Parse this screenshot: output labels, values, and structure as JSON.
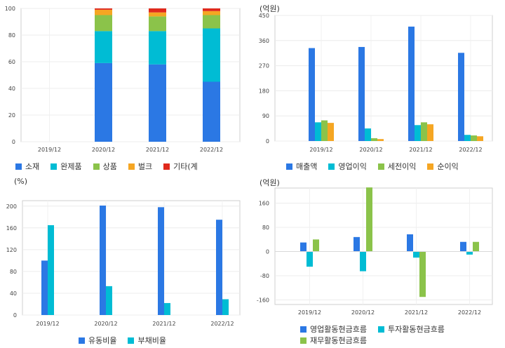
{
  "chart_data": [
    {
      "id": "c1",
      "type": "bar",
      "stacked": true,
      "unit_label": "",
      "categories": [
        "2019/12",
        "2020/12",
        "2021/12",
        "2022/12"
      ],
      "ylim": [
        0,
        100
      ],
      "yticks": [
        0,
        20,
        40,
        60,
        80,
        100
      ],
      "series": [
        {
          "name": "소재",
          "color": "#2b78e4",
          "values": [
            null,
            59,
            58,
            45
          ]
        },
        {
          "name": "완제품",
          "color": "#00bcd4",
          "values": [
            null,
            24,
            25,
            40
          ]
        },
        {
          "name": "상품",
          "color": "#8bc34a",
          "values": [
            null,
            12,
            11,
            10
          ]
        },
        {
          "name": "벌크",
          "color": "#f5a623",
          "values": [
            null,
            4,
            3,
            3
          ]
        },
        {
          "name": "기타(계",
          "color": "#e0291c",
          "values": [
            null,
            1,
            3,
            2
          ]
        }
      ],
      "legend_position": "bottom"
    },
    {
      "id": "c2",
      "type": "bar",
      "unit_label": "(억원)",
      "categories": [
        "2019/12",
        "2020/12",
        "2021/12",
        "2022/12"
      ],
      "ylim": [
        0,
        450
      ],
      "yticks": [
        0,
        90,
        180,
        270,
        360,
        450
      ],
      "series": [
        {
          "name": "매출액",
          "color": "#2b78e4",
          "values": [
            333,
            337,
            410,
            316
          ]
        },
        {
          "name": "영업이익",
          "color": "#00bcd4",
          "values": [
            67,
            45,
            57,
            22
          ]
        },
        {
          "name": "세전이익",
          "color": "#8bc34a",
          "values": [
            74,
            10,
            67,
            20
          ]
        },
        {
          "name": "순이익",
          "color": "#f5a623",
          "values": [
            65,
            7,
            60,
            17
          ]
        }
      ],
      "legend_position": "bottom"
    },
    {
      "id": "c3",
      "type": "bar",
      "unit_label": "(%)",
      "categories": [
        "2019/12",
        "2020/12",
        "2021/12",
        "2022/12"
      ],
      "ylim": [
        0,
        210
      ],
      "yticks": [
        0,
        40,
        80,
        120,
        160,
        200
      ],
      "series": [
        {
          "name": "유동비율",
          "color": "#2b78e4",
          "values": [
            100,
            201,
            198,
            175
          ]
        },
        {
          "name": "부채비율",
          "color": "#00bcd4",
          "values": [
            165,
            53,
            22,
            29
          ]
        }
      ],
      "legend_position": "bottom"
    },
    {
      "id": "c4",
      "type": "bar",
      "unit_label": "(억원)",
      "categories": [
        "2019/12",
        "2020/12",
        "2021/12",
        "2022/12"
      ],
      "ylim": [
        -175,
        210
      ],
      "yticks": [
        -160,
        -80,
        0,
        80,
        160
      ],
      "series": [
        {
          "name": "영업활동현금흐름",
          "color": "#2b78e4",
          "values": [
            30,
            48,
            57,
            32
          ]
        },
        {
          "name": "투자활동현금흐름",
          "color": "#00bcd4",
          "values": [
            -50,
            -65,
            -20,
            -10
          ]
        },
        {
          "name": "재무활동현금흐름",
          "color": "#8bc34a",
          "values": [
            40,
            212,
            -150,
            32
          ]
        }
      ],
      "legend_position": "bottom"
    }
  ]
}
